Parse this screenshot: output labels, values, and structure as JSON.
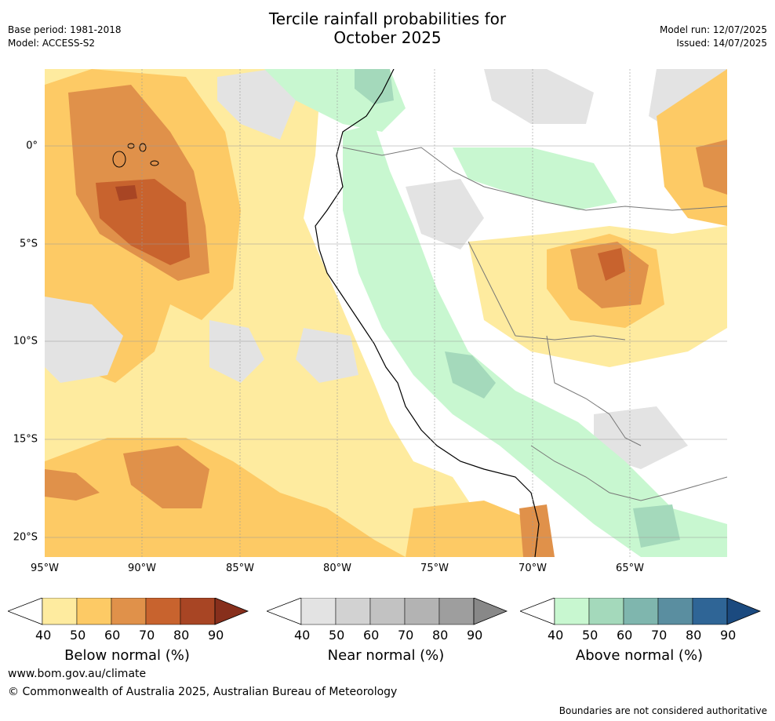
{
  "title": "Tercile rainfall probabilities for\nOctober 2025",
  "meta_left": {
    "base_period": "Base period: 1981-2018",
    "model": "Model: ACCESS-S2"
  },
  "meta_right": {
    "model_run": "Model run: 12/07/2025",
    "issued": "Issued: 14/07/2025"
  },
  "map": {
    "lon_ticks": [
      "95°W",
      "90°W",
      "85°W",
      "80°W",
      "75°W",
      "70°W",
      "65°W"
    ],
    "lat_ticks": [
      "0°",
      "5°S",
      "10°S",
      "15°S",
      "20°S"
    ]
  },
  "colorbars": [
    {
      "caption": "Below normal (%)",
      "ticks": [
        "40",
        "50",
        "60",
        "70",
        "80",
        "90"
      ],
      "colors": [
        "#ffffff",
        "#feeb9f",
        "#fdca65",
        "#e0914a",
        "#c8632e",
        "#a84524",
        "#872f1c"
      ]
    },
    {
      "caption": "Near normal (%)",
      "ticks": [
        "40",
        "50",
        "60",
        "70",
        "80",
        "90"
      ],
      "colors": [
        "#ffffff",
        "#e3e3e3",
        "#d2d2d2",
        "#c2c2c2",
        "#b3b3b3",
        "#9e9e9e",
        "#888888"
      ]
    },
    {
      "caption": "Above normal (%)",
      "ticks": [
        "40",
        "50",
        "60",
        "70",
        "80",
        "90"
      ],
      "colors": [
        "#ffffff",
        "#c8f7d0",
        "#a4d9bb",
        "#7fb6ae",
        "#5a8ea0",
        "#2f6596",
        "#1b4a7f"
      ]
    }
  ],
  "footer": {
    "url": "www.bom.gov.au/climate",
    "copyright": "© Commonwealth of Australia 2025, Australian Bureau of Meteorology",
    "disclaimer": "Boundaries are not considered authoritative"
  }
}
